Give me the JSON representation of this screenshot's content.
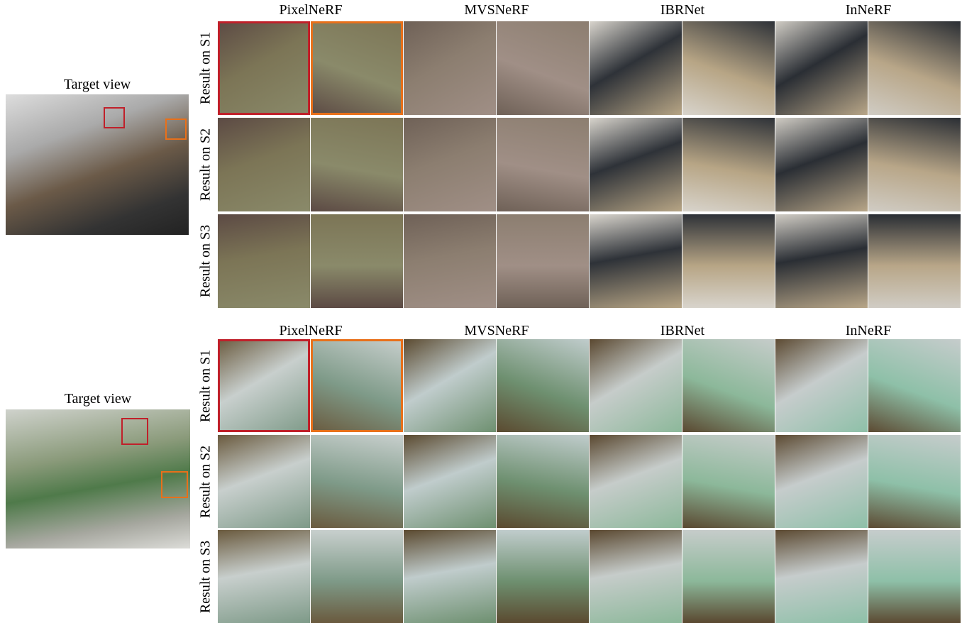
{
  "panels": [
    {
      "target_label": "Target view",
      "methods": [
        "PixelNeRF",
        "MVSNeRF",
        "IBRNet",
        "InNeRF"
      ],
      "rows": [
        "Result on S1",
        "Result on S2",
        "Result on S3"
      ]
    },
    {
      "target_label": "Target view",
      "methods": [
        "PixelNeRF",
        "MVSNeRF",
        "IBRNet",
        "InNeRF"
      ],
      "rows": [
        "Result on S1",
        "Result on S2",
        "Result on S3"
      ]
    }
  ]
}
